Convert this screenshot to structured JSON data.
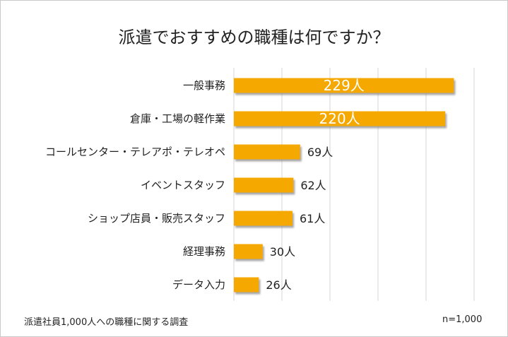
{
  "chart_data": {
    "type": "bar",
    "orientation": "horizontal",
    "title": "派遣でおすすめの職種は何ですか？",
    "categories": [
      "一般事務",
      "倉庫・工場の軽作業",
      "コールセンター・テレアポ・テレオペ",
      "イベントスタッフ",
      "ショップ店員・販売スタッフ",
      "経理事務",
      "データ入力"
    ],
    "values": [
      229,
      220,
      69,
      62,
      61,
      30,
      26
    ],
    "value_labels": [
      "229人",
      "220人",
      "69人",
      "62人",
      "61人",
      "30人",
      "26人"
    ],
    "xlim": [
      0,
      250
    ],
    "grid": true,
    "bar_color": "#f5a800",
    "bar_shadow": "#9a9a9a"
  },
  "footnote": "派遣社員1,000人への職種に関する調査",
  "sample_size": "n=1,000"
}
